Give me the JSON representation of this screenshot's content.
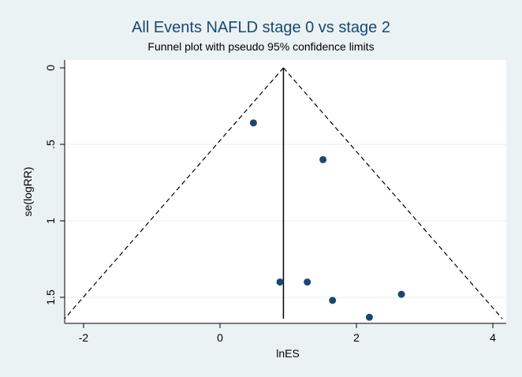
{
  "chart_data": {
    "type": "scatter",
    "title": "All Events NAFLD stage 0 vs stage 2",
    "subtitle": "Funnel plot with pseudo 95% confidence limits",
    "xlabel": "lnES",
    "ylabel": "se(logRR)",
    "xlim": [
      -2.35,
      4.1
    ],
    "ylim": [
      0,
      1.65
    ],
    "y_reversed": true,
    "xticks": [
      -2,
      0,
      2,
      4
    ],
    "xtick_labels": [
      "-2",
      "0",
      "2",
      "4"
    ],
    "yticks": [
      0,
      0.5,
      1,
      1.5
    ],
    "ytick_labels": [
      "0",
      ".5",
      "1",
      "1.5"
    ],
    "grid": "horizontal",
    "pooled_estimate": 0.93,
    "funnel": {
      "apex": [
        0.93,
        0
      ],
      "left_base": [
        -2.28,
        1.64
      ],
      "right_base": [
        4.14,
        1.64
      ]
    },
    "series": [
      {
        "points": [
          {
            "x": 0.49,
            "y": 0.36
          },
          {
            "x": 1.51,
            "y": 0.6
          },
          {
            "x": 0.88,
            "y": 1.4
          },
          {
            "x": 1.28,
            "y": 1.4
          },
          {
            "x": 1.65,
            "y": 1.52
          },
          {
            "x": 2.66,
            "y": 1.48
          },
          {
            "x": 2.19,
            "y": 1.63
          }
        ]
      }
    ],
    "colors": {
      "background": "#eaf2f3",
      "plot_bg": "#ffffff",
      "markers": "#1a476f",
      "title": "#1a476f",
      "grid": "#eaf2f3"
    }
  }
}
